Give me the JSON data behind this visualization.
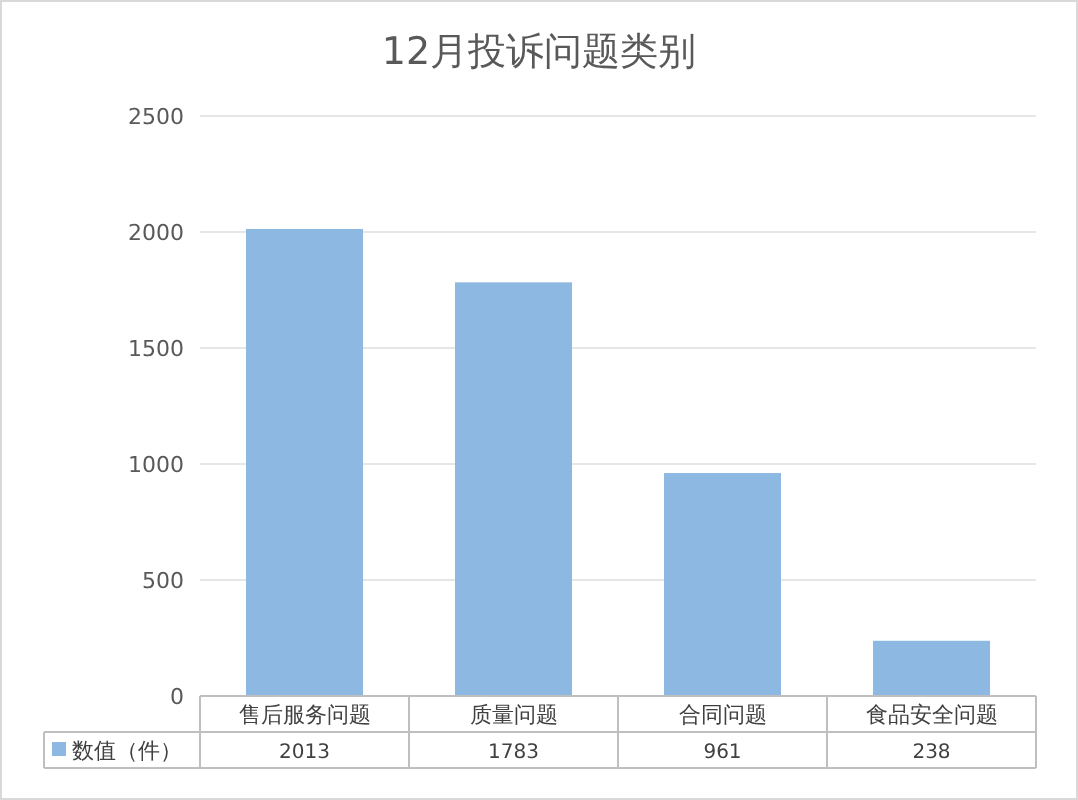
{
  "chart_data": {
    "type": "bar",
    "title": "12月投诉问题类别",
    "categories": [
      "售后服务问题",
      "质量问题",
      "合同问题",
      "食品安全问题"
    ],
    "series": [
      {
        "name": "数值（件）",
        "color": "#8db8e2",
        "values": [
          2013,
          1783,
          961,
          238
        ]
      }
    ],
    "ylim": [
      0,
      2500
    ],
    "yticks": [
      0,
      500,
      1000,
      1500,
      2000,
      2500
    ],
    "grid": "y",
    "data_labels": true,
    "legend": "bottom"
  }
}
